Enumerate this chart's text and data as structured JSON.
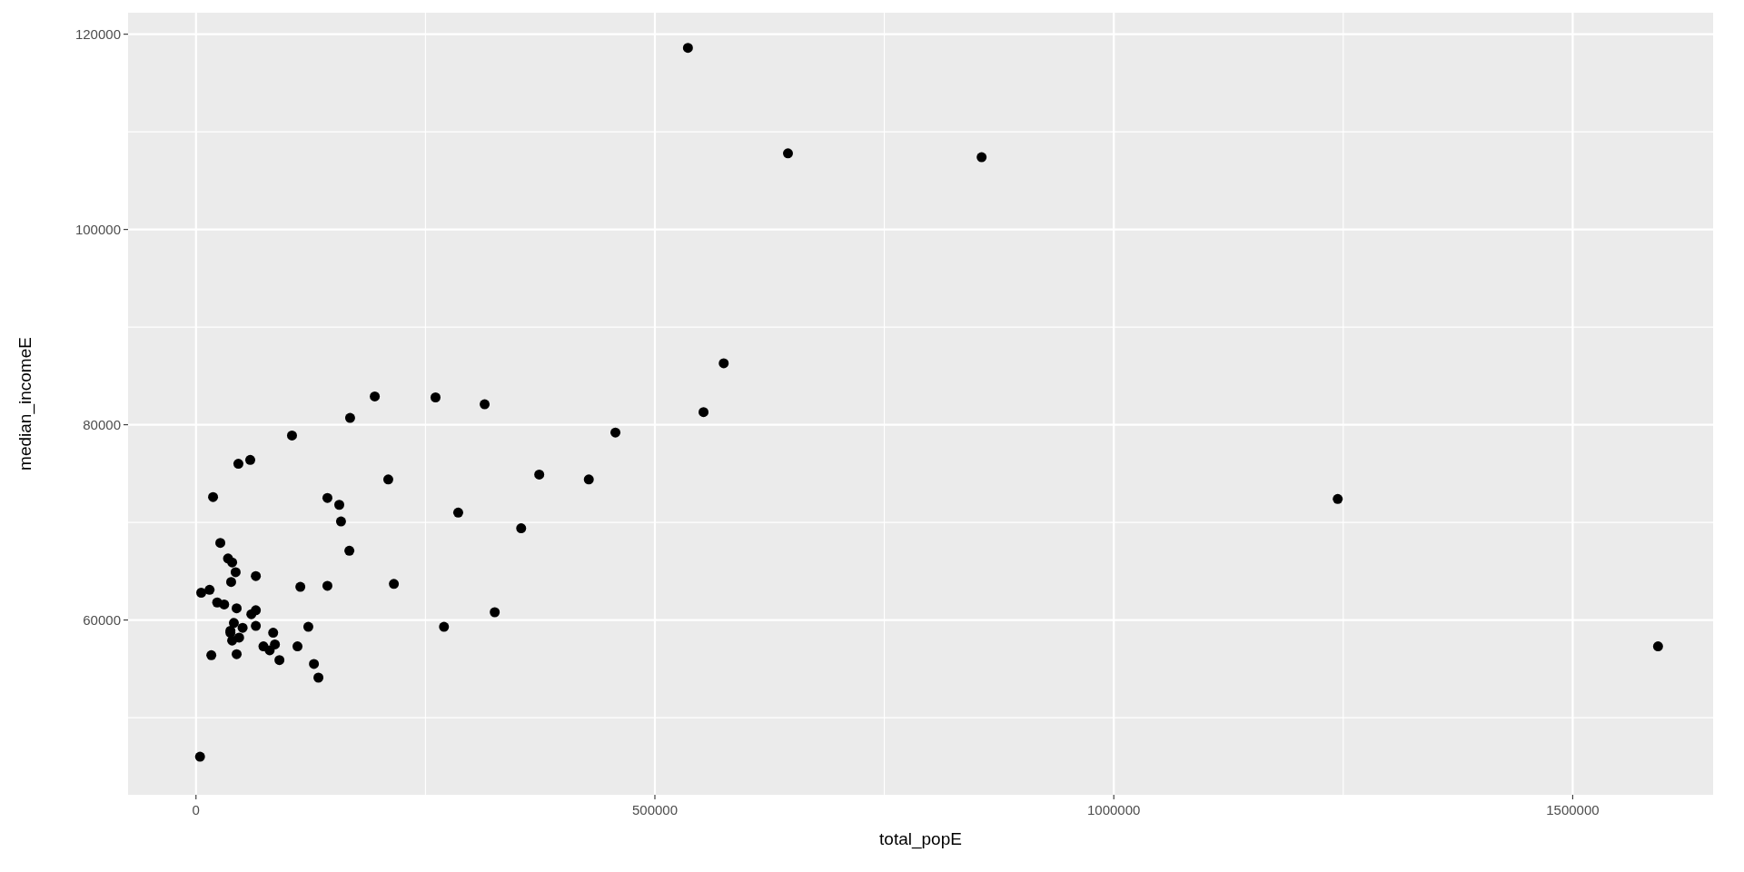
{
  "chart_data": {
    "type": "scatter",
    "xlabel": "total_popE",
    "ylabel": "median_incomeE",
    "xlim": [
      -74000,
      1653000
    ],
    "ylim": [
      42100,
      122200
    ],
    "xticks": [
      0,
      500000,
      1000000,
      1500000
    ],
    "yticks": [
      60000,
      80000,
      100000,
      120000
    ],
    "grid": true,
    "marker": "circle",
    "series": [
      {
        "color": "#000000",
        "x": [
          536000,
          645000,
          856000,
          575000,
          553000,
          457000,
          428000,
          1244000,
          1593000,
          194800,
          261000,
          314500,
          167900,
          104600,
          46200,
          59100,
          374000,
          209500,
          18600,
          143200,
          156100,
          285700,
          158000,
          354300,
          26500,
          167100,
          34900,
          39400,
          43200,
          65200,
          38300,
          113700,
          143200,
          215600,
          5700,
          14800,
          23100,
          30700,
          44300,
          60300,
          65200,
          325500,
          41300,
          50800,
          65200,
          37500,
          37500,
          122400,
          270200,
          47000,
          39400,
          84100,
          73500,
          80300,
          86000,
          110600,
          16700,
          44300,
          90900,
          128500,
          133400,
          4400
        ],
        "values": [
          118600,
          107800,
          107400,
          86300,
          81300,
          79200,
          74400,
          72400,
          57300,
          82900,
          82800,
          82100,
          80700,
          78900,
          76000,
          76400,
          74900,
          74400,
          72600,
          72500,
          71800,
          71000,
          70100,
          69400,
          67900,
          67100,
          66300,
          65900,
          64900,
          64500,
          63900,
          63400,
          63500,
          63700,
          62800,
          63100,
          61800,
          61600,
          61200,
          60600,
          61000,
          60800,
          59700,
          59200,
          59400,
          58900,
          58700,
          59300,
          59300,
          58200,
          57900,
          58700,
          57300,
          56900,
          57500,
          57300,
          56400,
          56500,
          55900,
          55500,
          54100,
          46000
        ]
      }
    ]
  }
}
